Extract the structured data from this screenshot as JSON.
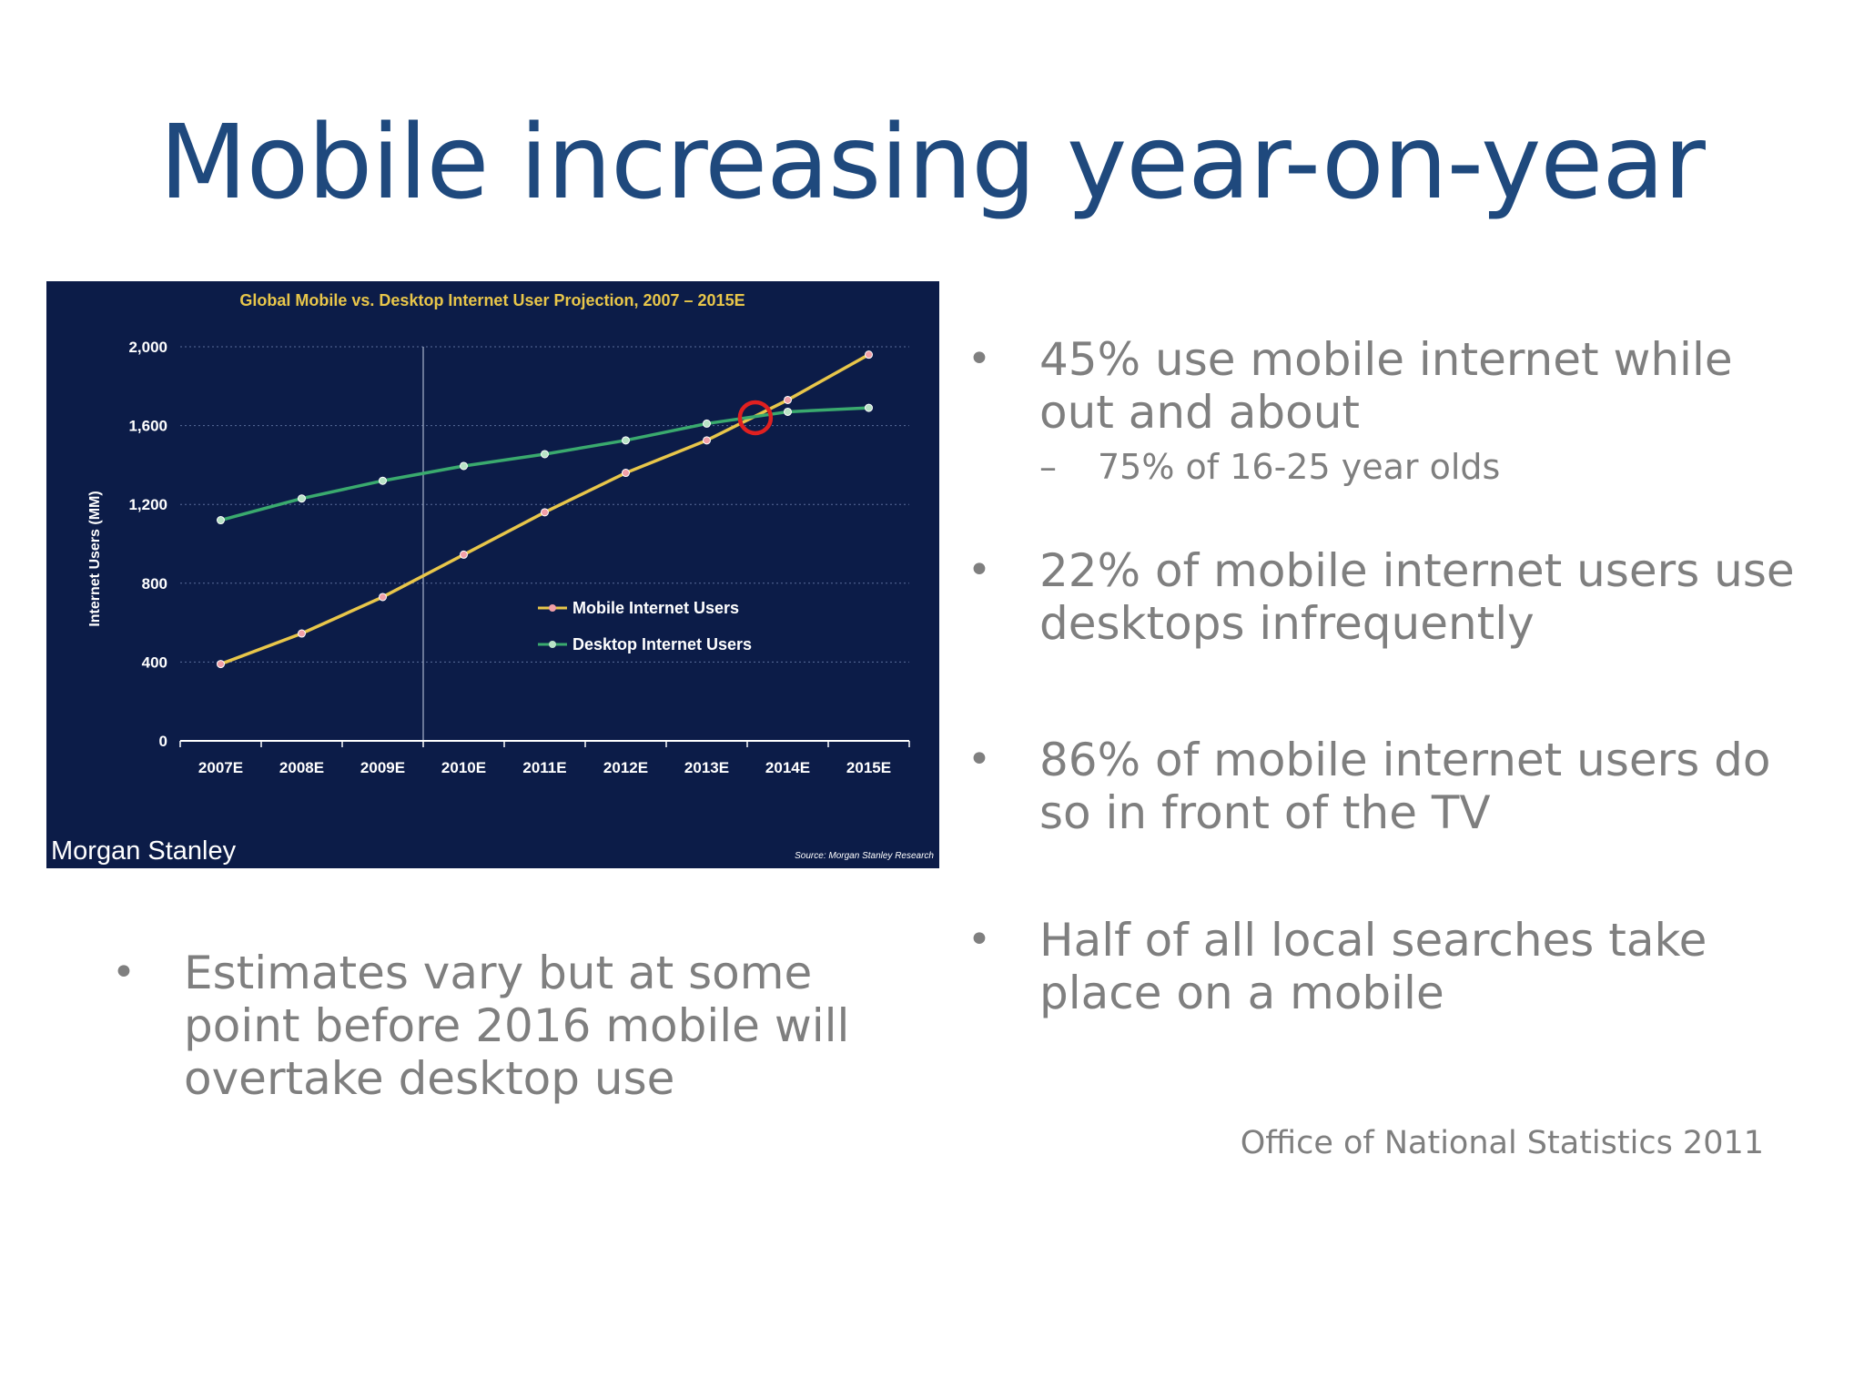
{
  "slide": {
    "title": "Mobile increasing year-on-year"
  },
  "chart_panel": {
    "brand": "Morgan Stanley",
    "source": "Source: Morgan Stanley Research"
  },
  "chart_data": {
    "type": "line",
    "title": "Global Mobile vs. Desktop Internet User Projection, 2007 – 2015E",
    "xlabel": "",
    "ylabel": "Internet Users (MM)",
    "categories": [
      "2007E",
      "2008E",
      "2009E",
      "2010E",
      "2011E",
      "2012E",
      "2013E",
      "2014E",
      "2015E"
    ],
    "y_ticks": [
      0,
      400,
      800,
      1200,
      1600,
      2000
    ],
    "y_tick_labels": [
      "0",
      "400",
      "800",
      "1,200",
      "1,600",
      "2,000"
    ],
    "ylim": [
      0,
      2000
    ],
    "series": [
      {
        "name": "Mobile Internet Users",
        "color": "#e8c64a",
        "marker_color": "#f2a0a8",
        "values": [
          390,
          545,
          730,
          945,
          1160,
          1360,
          1525,
          1730,
          1960
        ]
      },
      {
        "name": "Desktop Internet Users",
        "color": "#3aaa6e",
        "marker_color": "#b9e3c6",
        "values": [
          1120,
          1230,
          1320,
          1395,
          1455,
          1525,
          1610,
          1670,
          1690
        ]
      }
    ],
    "legend_position": "center-right",
    "grid": true,
    "background_color": "#0c1c48",
    "reference_line_category": "2009E",
    "crossover_marker": {
      "x": 2013.6,
      "y": 1640,
      "color": "#e02020"
    }
  },
  "right_bullets": [
    {
      "text": "45% use mobile internet while out and about",
      "sub": [
        "75% of 16-25 year olds"
      ]
    },
    {
      "text": "22% of mobile internet users use desktops infrequently",
      "sub": []
    },
    {
      "text": "86% of mobile internet users do so in front of the TV",
      "sub": []
    },
    {
      "text": "Half of all local searches take place on a mobile",
      "sub": []
    }
  ],
  "left_bullets": [
    {
      "text": "Estimates vary but at some point before 2016 mobile will overtake desktop use"
    }
  ],
  "source_note": "Office of National Statistics 2011"
}
